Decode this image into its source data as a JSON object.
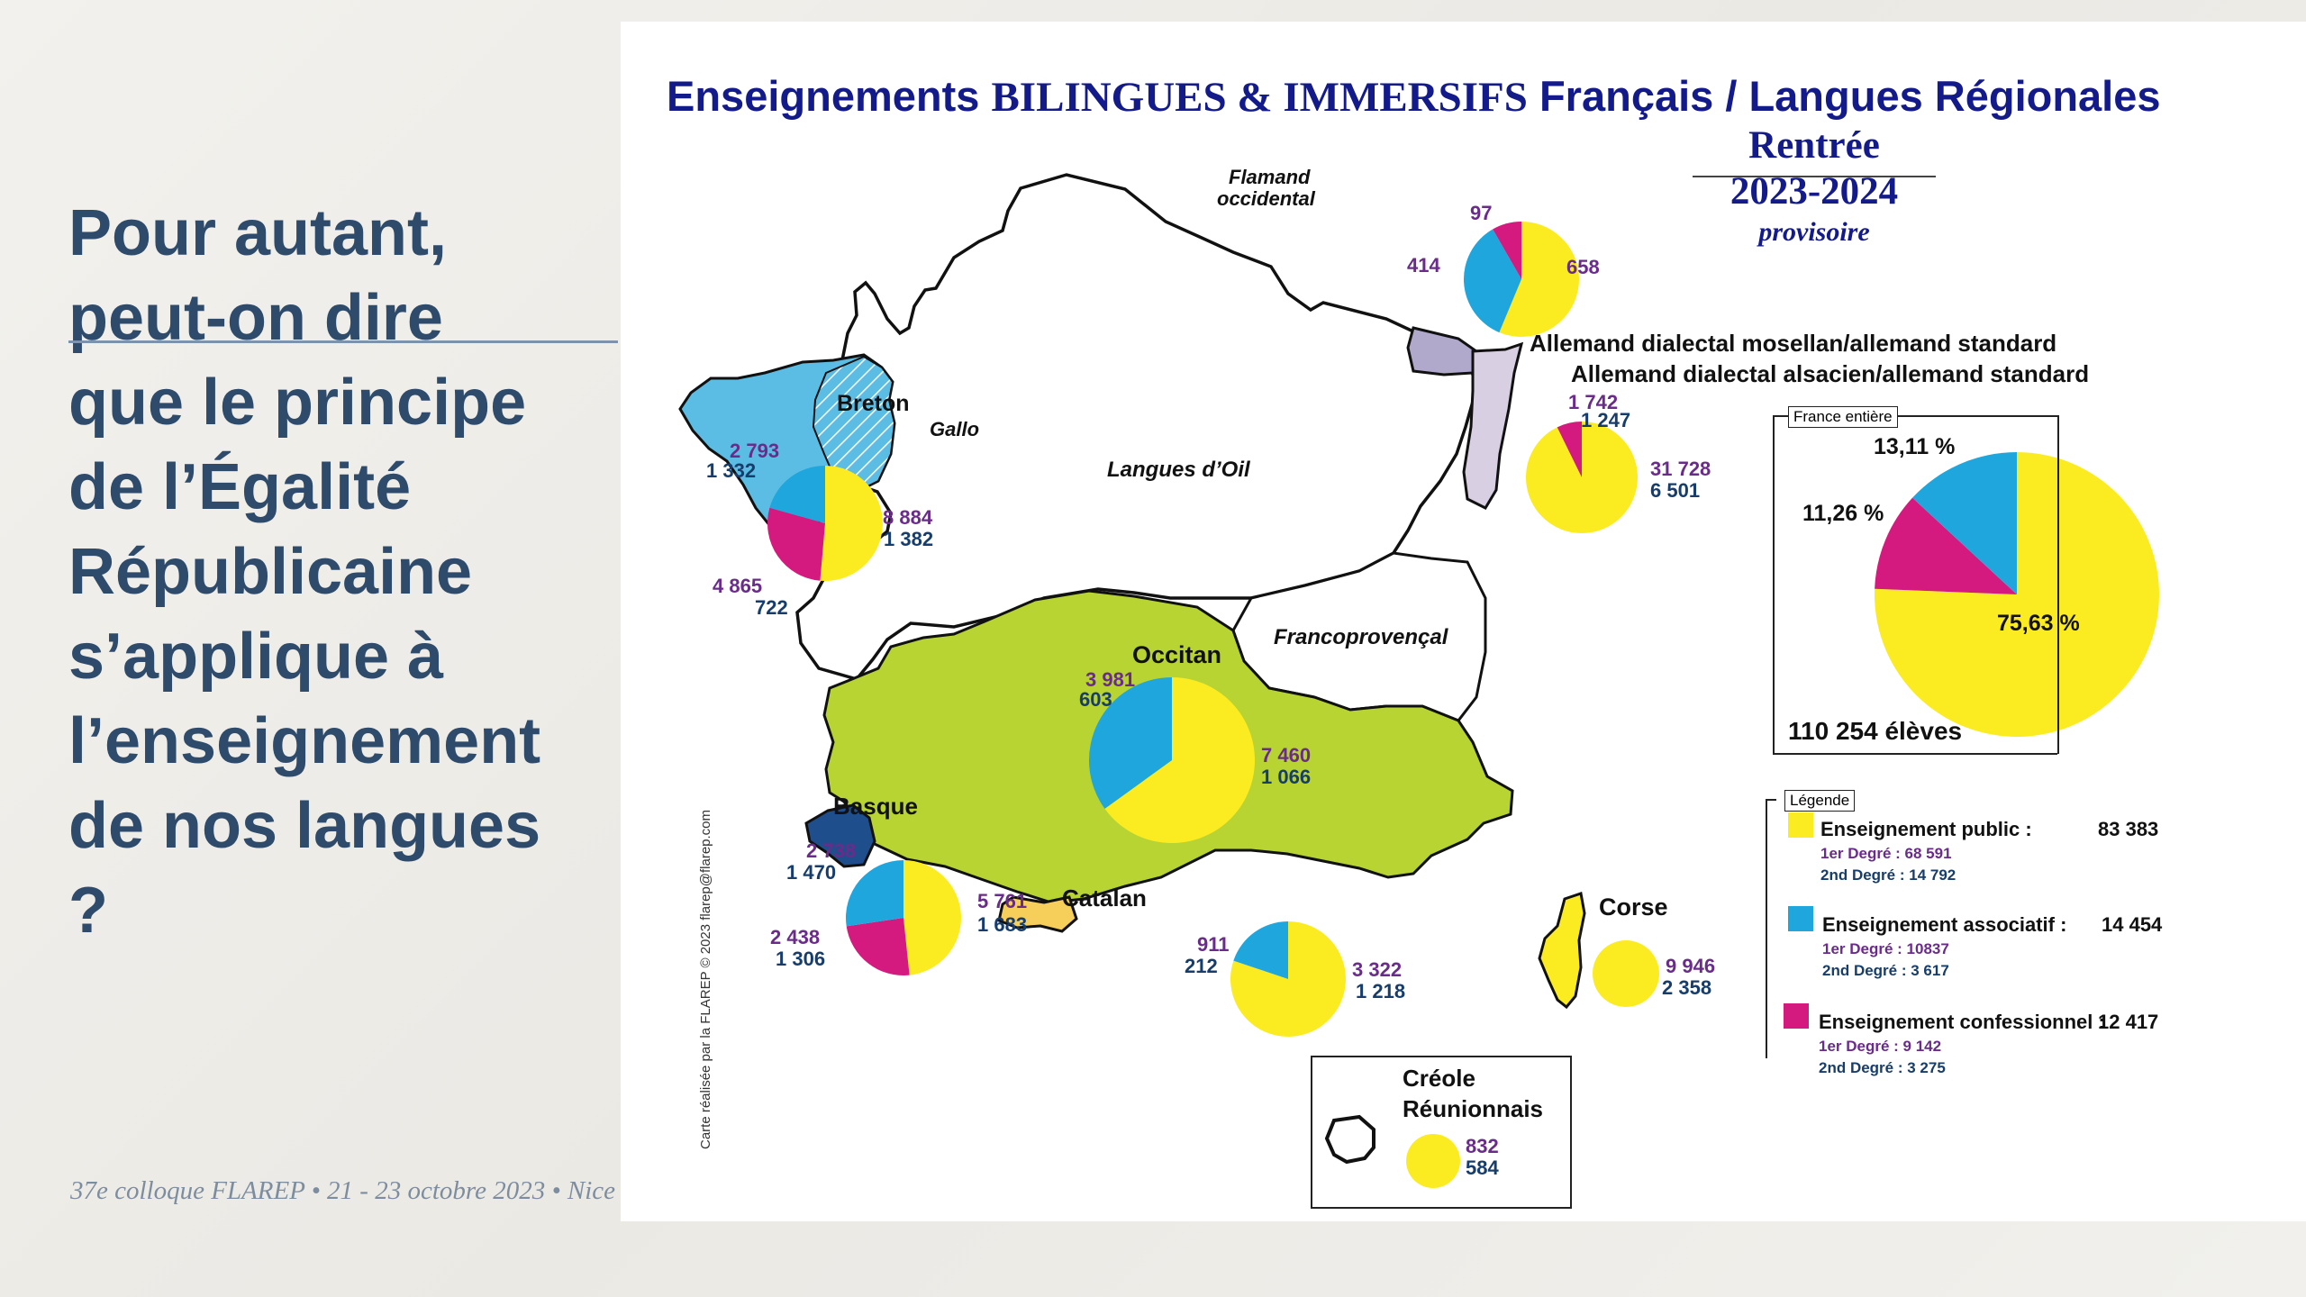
{
  "slide": {
    "question_lines": [
      "Pour autant,",
      "peut-on dire",
      "que le principe",
      "de l’Égalité",
      "Républicaine",
      "s’applique à",
      "l’enseignement",
      "de nos langues",
      "?"
    ],
    "footer": "37e colloque FLAREP • 21 - 23 octobre 2023 • Nice"
  },
  "map": {
    "title_part1": "Enseignements ",
    "title_part2": "BILINGUES & IMMERSIFS",
    "title_part3": " Français / Langues Régionales",
    "rentree": "Rentrée",
    "years": "2023-2024",
    "provisoire": "provisoire",
    "credit": "Carte réalisée par la FLAREP © 2023 flarep@flarep.com",
    "colors": {
      "public": "#fbec22",
      "associatif": "#1ea6dd",
      "confessionnel": "#d41a7e",
      "occitan": "#b8d433",
      "breton": "#5bbde4",
      "basque": "#1f4e8c",
      "catalan": "#f6cf5a",
      "alsace": "#d8cfe2",
      "moselle": "#b1a9cb"
    },
    "regions": {
      "flamand": "Flamand\noccidental",
      "breton": "Breton",
      "gallo": "Gallo",
      "oil": "Langues d’Oil",
      "alsacien_1": "Allemand dialectal mosellan/allemand standard",
      "alsacien_2": "Allemand dialectal alsacien/allemand standard",
      "occitan": "Occitan",
      "francoprovencal": "Francoprovençal",
      "basque": "Basque",
      "catalan": "Catalan",
      "corse": "Corse",
      "creole_1": "Créole",
      "creole_2": "Réunionnais"
    },
    "numbers": {
      "flamand": {
        "n97": "97",
        "n414": "414",
        "n658": "658"
      },
      "alsace": {
        "a": "1 742",
        "b": "1 247",
        "c": "31 728",
        "d": "6 501"
      },
      "breton": {
        "a": "2 793",
        "b": "1 332",
        "c": "8 884",
        "d": "1 382",
        "e": "4 865",
        "f": "722"
      },
      "occitan": {
        "a": "3 981",
        "b": "603",
        "c": "7 460",
        "d": "1 066"
      },
      "basque": {
        "a": "2 738",
        "b": "1 470",
        "c": "5 761",
        "d": "1 683",
        "e": "2 438",
        "f": "1 306"
      },
      "catalan": {
        "a": "911",
        "b": "212",
        "c": "3 322",
        "d": "1 218"
      },
      "corse": {
        "a": "9 946",
        "b": "2 358"
      },
      "creole": {
        "a": "832",
        "b": "584"
      }
    },
    "france": {
      "tag": "France entière",
      "pct_assoc": "13,11 %",
      "pct_conf": "11,26 %",
      "pct_public": "75,63 %",
      "shares": {
        "public": 75.63,
        "associatif": 13.11,
        "confessionnel": 11.26
      },
      "total": "110 254 élèves"
    },
    "legend": {
      "tag": "Légende",
      "items": [
        {
          "title": "Enseignement public :",
          "value": "83 383",
          "d1": "1er Degré : 68 591",
          "d2": "2nd Degré : 14 792"
        },
        {
          "title": "Enseignement associatif :",
          "value": "14 454",
          "d1": "1er Degré : 10837",
          "d2": "2nd Degré : 3 617"
        },
        {
          "title": "Enseignement confessionnel :",
          "value": "12 417",
          "d1": "1er Degré : 9 142",
          "d2": "2nd Degré : 3 275"
        }
      ]
    }
  }
}
